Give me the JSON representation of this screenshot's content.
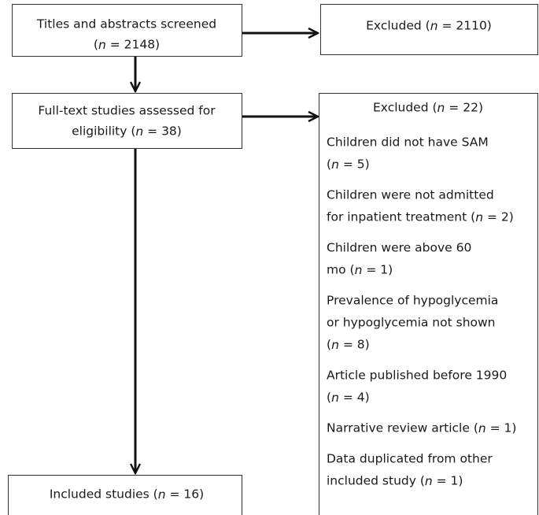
{
  "nodes": [
    {
      "lines": [
        "Titles and abstracts screened",
        "(n = 2148)"
      ]
    },
    {
      "lines": [
        "Excluded (n = 2110)"
      ]
    },
    {
      "lines": [
        "Full-text studies assessed for",
        "eligibility (n = 38)"
      ]
    },
    {
      "lines": [
        "Excluded (n = 22)"
      ],
      "reasons": [
        [
          "Children did not have SAM",
          "(n = 5)"
        ],
        [
          "Children were not admitted",
          "for inpatient treatment (n = 2)"
        ],
        [
          "Children were above 60",
          "mo (n = 1)"
        ],
        [
          "Prevalence of hypoglycemia",
          "or hypoglycemia not shown",
          "(n = 8)"
        ],
        [
          "Article published before 1990",
          "(n = 4)"
        ],
        [
          "Narrative review article (n = 1)"
        ],
        [
          "Data duplicated from other",
          "included study (n = 1)"
        ]
      ]
    },
    {
      "lines": [
        "Included studies (n = 16)"
      ]
    }
  ]
}
